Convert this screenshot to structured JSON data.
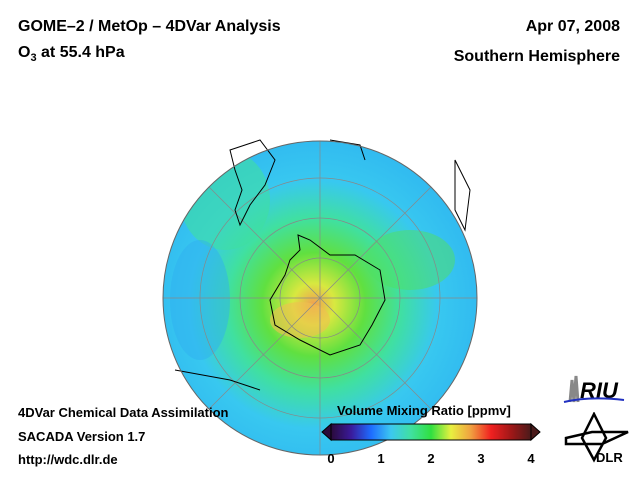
{
  "header": {
    "title_line1": "GOME–2 / MetOp – 4DVar Analysis",
    "species": "O",
    "species_sub": "3",
    "level": " at 55.4 hPa",
    "date": "Apr 07, 2008",
    "region": "Southern Hemisphere"
  },
  "footer": {
    "line1": "4DVar Chemical Data Assimilation",
    "line2": "SACADA Version 1.7",
    "line3": "http://wdc.dlr.de"
  },
  "colorbar": {
    "title": "Volume Mixing Ratio [ppmv]",
    "ticks": [
      "0",
      "1",
      "2",
      "3",
      "4"
    ],
    "range": [
      0,
      4
    ],
    "units": "ppmv",
    "colors": [
      "#2a0a3a",
      "#3a1a9a",
      "#1e6cff",
      "#3cc8f0",
      "#40e0a0",
      "#30e040",
      "#e8f040",
      "#f0a040",
      "#f02020",
      "#a01818",
      "#4a1a1a"
    ]
  },
  "logos": {
    "riu": "RIU",
    "dlr": "DLR"
  }
}
